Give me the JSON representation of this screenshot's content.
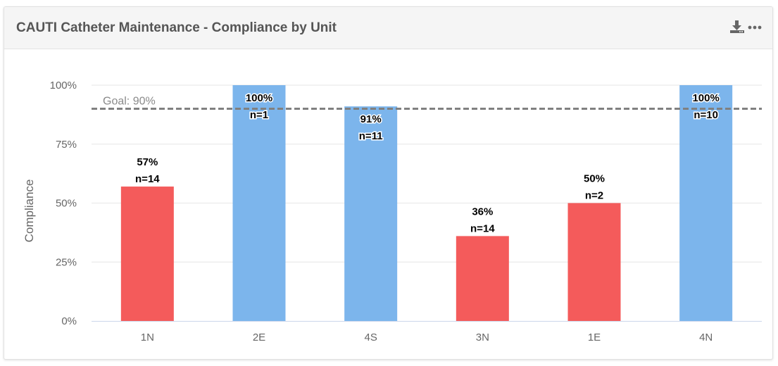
{
  "header": {
    "title": "CAUTI Catheter Maintenance - Compliance by Unit",
    "download_icon": "download-icon",
    "more_icon": "more-horizontal-icon"
  },
  "colors": {
    "below_goal": "#f45b5b",
    "at_goal": "#7cb5ec",
    "goal_line": "#808080",
    "grid": "#e6e6e6",
    "axis_line": "#ccd6eb",
    "tick_label": "#666666"
  },
  "chart_data": {
    "type": "bar",
    "title": "",
    "xlabel": "",
    "ylabel": "Compliance",
    "categories": [
      "1N",
      "2E",
      "4S",
      "3N",
      "1E",
      "4N"
    ],
    "values": [
      57,
      100,
      91,
      36,
      50,
      100
    ],
    "counts": [
      "n=14",
      "n=1",
      "n=11",
      "n=14",
      "n=2",
      "n=10"
    ],
    "value_labels": [
      "57%",
      "100%",
      "91%",
      "36%",
      "50%",
      "100%"
    ],
    "ylim": [
      0,
      100
    ],
    "yticks": [
      0,
      25,
      50,
      75,
      100
    ],
    "ytick_labels": [
      "0%",
      "25%",
      "50%",
      "75%",
      "100%"
    ],
    "goal": {
      "value": 90,
      "label": "Goal: 90%"
    },
    "grid": true,
    "legend": "none"
  }
}
